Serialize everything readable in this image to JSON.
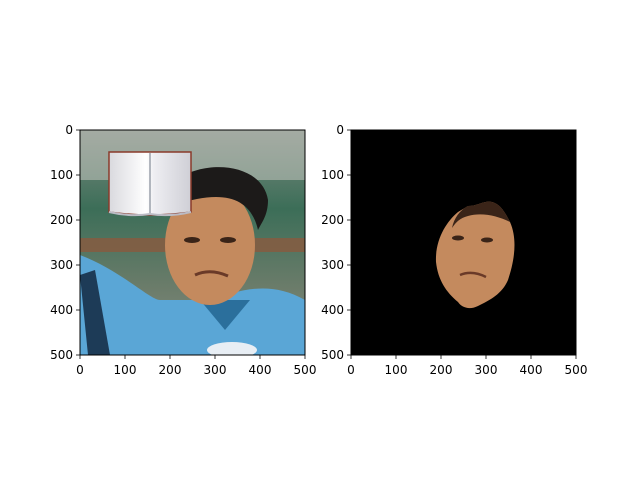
{
  "chart_data": [
    {
      "type": "image",
      "title": "",
      "xlabel": "",
      "ylabel": "",
      "xlim": [
        0,
        500
      ],
      "ylim": [
        500,
        0
      ],
      "xticks": [
        "0",
        "100",
        "200",
        "300",
        "400",
        "500"
      ],
      "yticks": [
        "0",
        "100",
        "200",
        "300",
        "400",
        "500"
      ],
      "content": "photo of a man in a light blue shirt with an open book overlaid on the upper left"
    },
    {
      "type": "image",
      "title": "",
      "xlabel": "",
      "ylabel": "",
      "xlim": [
        0,
        500
      ],
      "ylim": [
        500,
        0
      ],
      "xticks": [
        "0",
        "100",
        "200",
        "300",
        "400",
        "500"
      ],
      "yticks": [
        "0",
        "100",
        "200",
        "300",
        "400",
        "500"
      ],
      "content": "segmented face region on a black background"
    }
  ],
  "colors": {
    "shirt": "#5aa6d6",
    "shirt_dark": "#2b6f9c",
    "skin": "#c48a5e",
    "hair": "#1c1a19",
    "background_green": "#3c6e58",
    "book_page": "#f4f4f6",
    "mask_background": "#000000"
  }
}
